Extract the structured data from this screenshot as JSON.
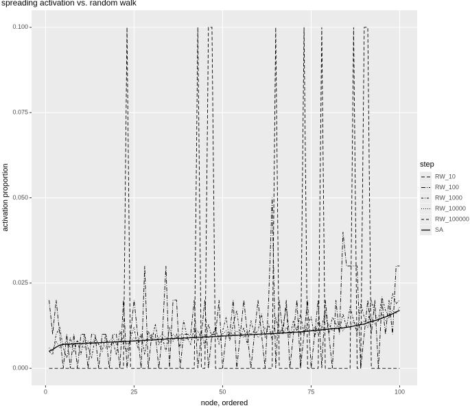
{
  "chart_data": {
    "type": "line",
    "title": "spreading activation vs. random walk",
    "x_label": "node, ordered",
    "y_label": "activation proportion",
    "legend_title": "step",
    "legend": "right",
    "grid": true,
    "xlim": [
      -3.95,
      104.95
    ],
    "ylim": [
      -0.005,
      0.105
    ],
    "xticks": [
      0,
      25,
      50,
      75,
      100
    ],
    "yticks": [
      {
        "value": 0,
        "label": "0.000"
      },
      {
        "value": 0.025,
        "label": "0.025"
      },
      {
        "value": 0.05,
        "label": "0.050"
      },
      {
        "value": 0.075,
        "label": "0.075"
      },
      {
        "value": 0.1,
        "label": "0.100"
      }
    ],
    "x": [
      1,
      2,
      3,
      4,
      5,
      6,
      7,
      8,
      9,
      10,
      11,
      12,
      13,
      14,
      15,
      16,
      17,
      18,
      19,
      20,
      21,
      22,
      23,
      24,
      25,
      26,
      27,
      28,
      29,
      30,
      31,
      32,
      33,
      34,
      35,
      36,
      37,
      38,
      39,
      40,
      41,
      42,
      43,
      44,
      45,
      46,
      47,
      48,
      49,
      50,
      51,
      52,
      53,
      54,
      55,
      56,
      57,
      58,
      59,
      60,
      61,
      62,
      63,
      64,
      65,
      66,
      67,
      68,
      69,
      70,
      71,
      72,
      73,
      74,
      75,
      76,
      77,
      78,
      79,
      80,
      81,
      82,
      83,
      84,
      85,
      86,
      87,
      88,
      89,
      90,
      91,
      92,
      93,
      94,
      95,
      96,
      97,
      98,
      99,
      100
    ],
    "series": [
      {
        "name": "RW_10",
        "color": "#000000",
        "linetype": "5 3",
        "values": [
          0,
          0,
          0,
          0,
          0,
          0,
          0,
          0,
          0,
          0,
          0,
          0,
          0,
          0,
          0,
          0,
          0,
          0,
          0,
          0,
          0,
          0,
          0.1,
          0,
          0,
          0,
          0,
          0,
          0,
          0,
          0,
          0,
          0,
          0,
          0,
          0,
          0,
          0,
          0,
          0,
          0,
          0,
          0.1,
          0,
          0,
          0.1,
          0.1,
          0,
          0,
          0,
          0,
          0,
          0,
          0,
          0,
          0,
          0,
          0,
          0,
          0,
          0,
          0,
          0,
          0,
          0.1,
          0,
          0,
          0,
          0,
          0,
          0,
          0,
          0.1,
          0,
          0,
          0,
          0,
          0.1,
          0,
          0,
          0,
          0,
          0,
          0,
          0,
          0,
          0.1,
          0,
          0,
          0.1,
          0.1,
          0,
          0,
          0,
          0,
          0,
          0,
          0,
          0,
          0
        ]
      },
      {
        "name": "RW_100",
        "color": "#000000",
        "linetype": "6 2 1 2",
        "values": [
          0.02,
          0.01,
          0.02,
          0.01,
          0,
          0.01,
          0,
          0.01,
          0,
          0.01,
          0.01,
          0,
          0.01,
          0.01,
          0,
          0.01,
          0.01,
          0,
          0.01,
          0.01,
          0,
          0.02,
          0,
          0.01,
          0.02,
          0.01,
          0,
          0.03,
          0,
          0.01,
          0.01,
          0,
          0.01,
          0.03,
          0,
          0.02,
          0.02,
          0,
          0.01,
          0.01,
          0.01,
          0.02,
          0,
          0.01,
          0.02,
          0,
          0.01,
          0.01,
          0.02,
          0,
          0.01,
          0.01,
          0.02,
          0,
          0.01,
          0.02,
          0.01,
          0,
          0.01,
          0.02,
          0.01,
          0,
          0.02,
          0.05,
          0,
          0.02,
          0.01,
          0.02,
          0,
          0.01,
          0.02,
          0,
          0.01,
          0.02,
          0,
          0.01,
          0.02,
          0,
          0.02,
          0.01,
          0,
          0.02,
          0.01,
          0.04,
          0.03,
          0.03,
          0.03,
          0.03,
          0,
          0.01,
          0.02,
          0.01,
          0.02,
          0,
          0.02,
          0.01,
          0.02,
          0.01,
          0.03,
          0.03
        ]
      },
      {
        "name": "RW_1000",
        "color": "#000000",
        "linetype": "3 2 1 2",
        "values": [
          0.005,
          0.004,
          0.01,
          0.012,
          0.006,
          0.003,
          0.009,
          0.005,
          0.008,
          0.004,
          0.01,
          0.006,
          0.003,
          0.009,
          0.007,
          0.005,
          0.01,
          0.006,
          0.008,
          0.004,
          0.011,
          0.007,
          0.005,
          0.009,
          0.012,
          0.006,
          0.01,
          0.004,
          0.011,
          0.008,
          0.013,
          0.007,
          0.009,
          0.005,
          0.012,
          0.008,
          0.01,
          0.006,
          0.014,
          0.009,
          0.007,
          0.012,
          0.008,
          0.011,
          0.006,
          0.013,
          0.009,
          0.012,
          0.007,
          0.011,
          0.015,
          0.008,
          0.013,
          0.017,
          0.009,
          0.012,
          0.007,
          0.014,
          0.01,
          0.011,
          0.016,
          0.009,
          0.013,
          0.008,
          0.015,
          0.01,
          0.012,
          0.018,
          0.009,
          0.014,
          0.011,
          0.016,
          0.01,
          0.013,
          0.015,
          0.009,
          0.014,
          0.012,
          0.017,
          0.01,
          0.015,
          0.013,
          0.011,
          0.016,
          0.012,
          0.018,
          0.014,
          0.01,
          0.019,
          0.015,
          0.013,
          0.02,
          0.016,
          0.014,
          0.021,
          0.017,
          0.015,
          0.022,
          0.019,
          0.02
        ]
      },
      {
        "name": "RW_10000",
        "color": "#000000",
        "linetype": "1 2",
        "values": [
          0.006,
          0.005,
          0.008,
          0.006,
          0.007,
          0.008,
          0.006,
          0.007,
          0.008,
          0.007,
          0.006,
          0.008,
          0.007,
          0.009,
          0.007,
          0.008,
          0.006,
          0.008,
          0.009,
          0.007,
          0.008,
          0.009,
          0.007,
          0.008,
          0.009,
          0.008,
          0.01,
          0.008,
          0.009,
          0.01,
          0.008,
          0.009,
          0.01,
          0.009,
          0.008,
          0.01,
          0.009,
          0.01,
          0.008,
          0.009,
          0.01,
          0.009,
          0.011,
          0.009,
          0.01,
          0.009,
          0.01,
          0.011,
          0.009,
          0.01,
          0.011,
          0.009,
          0.01,
          0.011,
          0.01,
          0.009,
          0.011,
          0.01,
          0.011,
          0.009,
          0.01,
          0.012,
          0.01,
          0.011,
          0.009,
          0.011,
          0.01,
          0.012,
          0.01,
          0.011,
          0.012,
          0.01,
          0.011,
          0.012,
          0.011,
          0.012,
          0.01,
          0.012,
          0.011,
          0.013,
          0.011,
          0.012,
          0.013,
          0.011,
          0.013,
          0.012,
          0.014,
          0.012,
          0.013,
          0.014,
          0.012,
          0.015,
          0.013,
          0.014,
          0.016,
          0.014,
          0.015,
          0.017,
          0.016,
          0.018
        ]
      },
      {
        "name": "RW_100000",
        "color": "#000000",
        "linetype": "4 3",
        "values": [
          0.0051,
          0.0054,
          0.0063,
          0.0067,
          0.0071,
          0.007,
          0.0072,
          0.0071,
          0.0073,
          0.0072,
          0.0074,
          0.0073,
          0.0075,
          0.0073,
          0.0076,
          0.0075,
          0.0077,
          0.0076,
          0.0078,
          0.0077,
          0.0079,
          0.0078,
          0.008,
          0.0079,
          0.0081,
          0.008,
          0.0082,
          0.0081,
          0.0084,
          0.0082,
          0.0085,
          0.0084,
          0.0086,
          0.0085,
          0.0088,
          0.0086,
          0.0089,
          0.0087,
          0.009,
          0.0088,
          0.0091,
          0.0089,
          0.0092,
          0.009,
          0.0093,
          0.0091,
          0.0094,
          0.0092,
          0.0095,
          0.0094,
          0.0096,
          0.0095,
          0.0097,
          0.0096,
          0.0098,
          0.0097,
          0.0099,
          0.0098,
          0.01,
          0.0099,
          0.0101,
          0.01,
          0.0102,
          0.01,
          0.0103,
          0.0102,
          0.0105,
          0.0103,
          0.0106,
          0.0105,
          0.0107,
          0.0106,
          0.0109,
          0.0108,
          0.0111,
          0.011,
          0.0113,
          0.0112,
          0.0115,
          0.0114,
          0.0117,
          0.0116,
          0.0119,
          0.0118,
          0.0121,
          0.0121,
          0.0125,
          0.0125,
          0.0129,
          0.0129,
          0.0135,
          0.0136,
          0.0141,
          0.0142,
          0.0148,
          0.015,
          0.0156,
          0.0159,
          0.0166,
          0.0169
        ]
      },
      {
        "name": "SA",
        "color": "#000000",
        "linetype": "none",
        "values": [
          0.005,
          0.0055,
          0.0062,
          0.0068,
          0.007,
          0.0071,
          0.0071,
          0.0072,
          0.0072,
          0.0073,
          0.0073,
          0.0074,
          0.0074,
          0.0075,
          0.0075,
          0.0076,
          0.0076,
          0.0077,
          0.0077,
          0.0078,
          0.0078,
          0.0079,
          0.0079,
          0.008,
          0.008,
          0.0081,
          0.0081,
          0.0082,
          0.0083,
          0.0083,
          0.0084,
          0.0085,
          0.0085,
          0.0086,
          0.0087,
          0.0087,
          0.0088,
          0.0088,
          0.0089,
          0.0089,
          0.009,
          0.009,
          0.0091,
          0.0091,
          0.0092,
          0.0092,
          0.0093,
          0.0093,
          0.0094,
          0.0095,
          0.0095,
          0.0096,
          0.0096,
          0.0097,
          0.0097,
          0.0098,
          0.0098,
          0.0099,
          0.0099,
          0.01,
          0.01,
          0.0101,
          0.0101,
          0.0102,
          0.0102,
          0.0103,
          0.0104,
          0.0104,
          0.0105,
          0.0106,
          0.0106,
          0.0107,
          0.0108,
          0.0109,
          0.011,
          0.0111,
          0.0112,
          0.0113,
          0.0114,
          0.0115,
          0.0116,
          0.0117,
          0.0118,
          0.0119,
          0.012,
          0.0122,
          0.0124,
          0.0126,
          0.0128,
          0.013,
          0.0134,
          0.0137,
          0.014,
          0.0143,
          0.0147,
          0.0151,
          0.0155,
          0.016,
          0.0165,
          0.017
        ]
      }
    ]
  }
}
